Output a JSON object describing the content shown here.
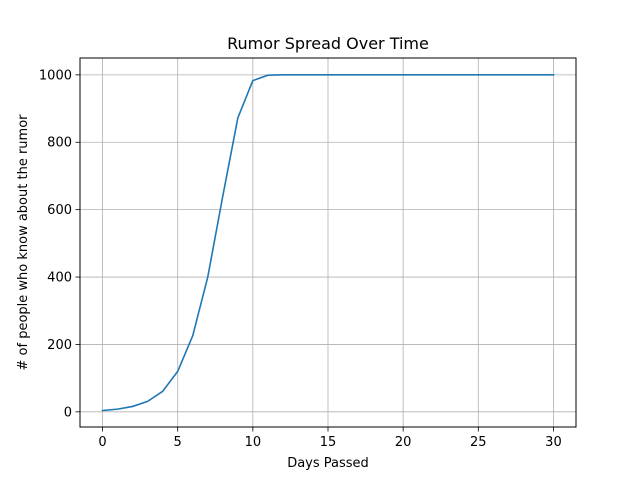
{
  "chart_data": {
    "type": "line",
    "title": "Rumor Spread Over Time",
    "xlabel": "Days Passed",
    "ylabel": "# of people who know about the rumor",
    "xlim": [
      -1.5,
      31.5
    ],
    "ylim": [
      -45,
      1050
    ],
    "xticks": [
      0,
      5,
      10,
      15,
      20,
      25,
      30
    ],
    "yticks": [
      0,
      200,
      400,
      600,
      800,
      1000
    ],
    "grid": true,
    "series": [
      {
        "color": "#1f77b4",
        "x": [
          0,
          1,
          2,
          3,
          4,
          5,
          6,
          7,
          8,
          9,
          10,
          11,
          12,
          13,
          14,
          15,
          16,
          17,
          18,
          19,
          20,
          21,
          22,
          23,
          24,
          25,
          26,
          27,
          28,
          29,
          30
        ],
        "values": [
          4,
          8,
          16,
          31,
          61,
          120,
          226,
          400,
          640,
          872,
          983,
          999,
          1000,
          1000,
          1000,
          1000,
          1000,
          1000,
          1000,
          1000,
          1000,
          1000,
          1000,
          1000,
          1000,
          1000,
          1000,
          1000,
          1000,
          1000,
          1000
        ]
      }
    ]
  }
}
